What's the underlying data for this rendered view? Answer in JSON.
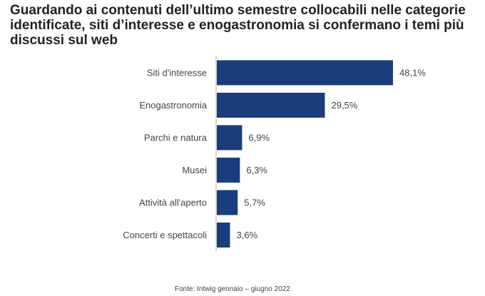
{
  "title": "Guardando ai contenuti dell’ultimo semestre collocabili nelle categorie identificate, siti d’interesse e enogastronomia si confermano i temi più discussi sul web",
  "source": "Fonte: Intwig gennaio – giugno 2022",
  "colors": {
    "bar": "#1a3d7c",
    "axis": "#b0b0b0"
  },
  "chart_data": {
    "type": "bar",
    "orientation": "horizontal",
    "categories": [
      "Siti d'interesse",
      "Enogastronomia",
      "Parchi e natura",
      "Musei",
      "Attività all'aperto",
      "Concerti e spettacoli"
    ],
    "values": [
      48.1,
      29.5,
      6.9,
      6.3,
      5.7,
      3.6
    ],
    "value_labels": [
      "48,1%",
      "29,5%",
      "6,9%",
      "6,3%",
      "5,7%",
      "3,6%"
    ],
    "unit": "%",
    "xlim": [
      0,
      48.1
    ],
    "grid": false,
    "legend": "none"
  }
}
